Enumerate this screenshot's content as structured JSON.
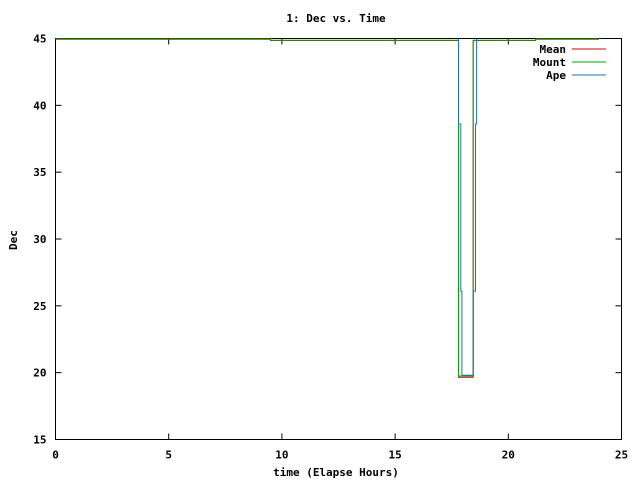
{
  "chart_data": {
    "type": "line",
    "title": "1: Dec vs. Time",
    "xlabel": "time (Elapse Hours)",
    "ylabel": "Dec",
    "xlim": [
      0,
      25
    ],
    "ylim": [
      15,
      45
    ],
    "xticks": [
      0,
      5,
      10,
      15,
      20,
      25
    ],
    "yticks": [
      15,
      20,
      25,
      30,
      35,
      40,
      45
    ],
    "grid": false,
    "legend_position": "top-right",
    "series": [
      {
        "name": "Mean",
        "color": "#cc0000",
        "points": [
          [
            0,
            44.95
          ],
          [
            9.5,
            44.95
          ],
          [
            9.5,
            44.85
          ],
          [
            17.8,
            44.85
          ],
          [
            17.8,
            19.65
          ],
          [
            18.45,
            19.65
          ],
          [
            18.45,
            44.85
          ],
          [
            21.2,
            44.85
          ],
          [
            21.2,
            44.95
          ],
          [
            24,
            44.95
          ]
        ]
      },
      {
        "name": "Mount",
        "color": "#00aa00",
        "points": [
          [
            0,
            44.97
          ],
          [
            9.5,
            44.97
          ],
          [
            9.5,
            44.87
          ],
          [
            17.8,
            44.87
          ],
          [
            17.8,
            19.75
          ],
          [
            18.45,
            19.75
          ],
          [
            18.45,
            44.87
          ],
          [
            21.2,
            44.87
          ],
          [
            21.2,
            44.97
          ],
          [
            24,
            44.97
          ]
        ]
      },
      {
        "name": "Ape",
        "color": "#1f6fb5",
        "points": [
          [
            17.8,
            45
          ],
          [
            17.8,
            38.6
          ],
          [
            17.9,
            38.6
          ],
          [
            17.9,
            26.1
          ],
          [
            17.95,
            26.1
          ],
          [
            17.95,
            19.8
          ],
          [
            18.45,
            19.8
          ],
          [
            18.45,
            26.1
          ],
          [
            18.55,
            26.1
          ],
          [
            18.55,
            38.6
          ],
          [
            18.6,
            38.6
          ],
          [
            18.6,
            45
          ]
        ]
      }
    ]
  }
}
